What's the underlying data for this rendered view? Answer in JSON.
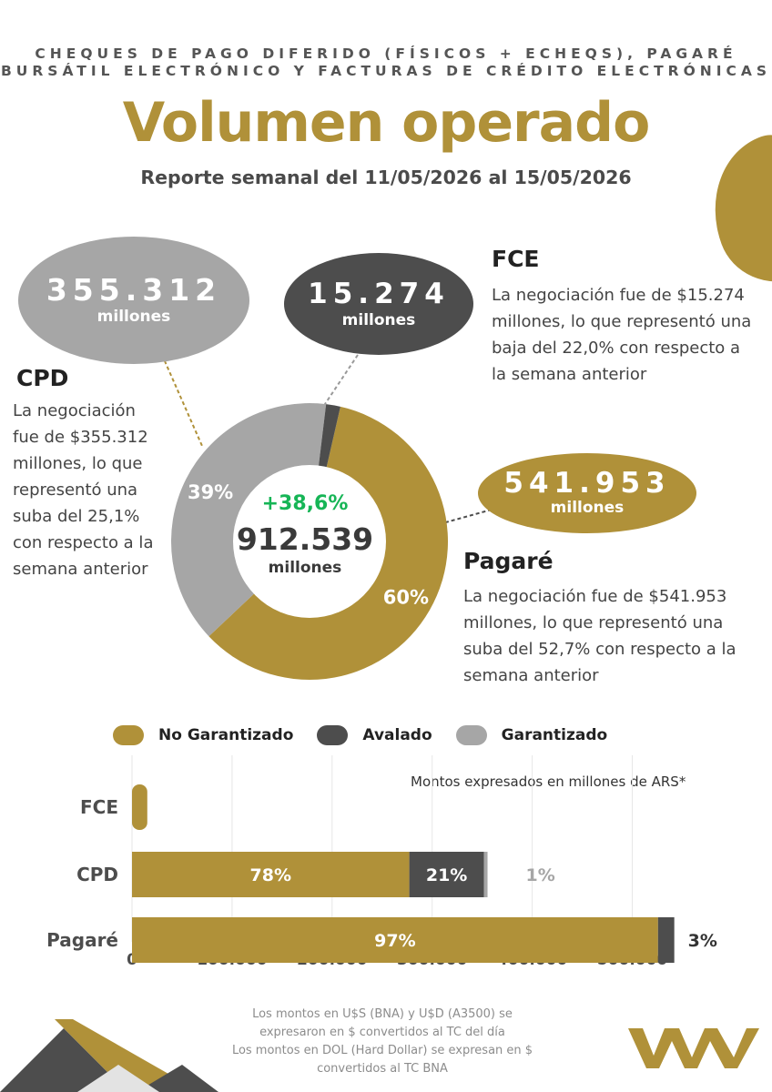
{
  "header": {
    "subtitle_line1": "CHEQUES DE PAGO DIFERIDO (FÍSICOS + ECHEQS), PAGARÉ",
    "subtitle_line2": "BURSÁTIL ELECTRÓNICO Y FACTURAS DE CRÉDITO ELECTRÓNICAS",
    "title": "Volumen operado",
    "report": "Reporte semanal del 11/05/2026 al 15/05/2026"
  },
  "bubbles": {
    "cpd": {
      "value": "355.312",
      "unit": "millones"
    },
    "fce": {
      "value": "15.274",
      "unit": "millones"
    },
    "pagare": {
      "value": "541.953",
      "unit": "millones"
    }
  },
  "sections": {
    "cpd": {
      "heading": "CPD",
      "lines": [
        "La negociación",
        "fue de $355.312",
        "millones, lo que",
        "representó una",
        "suba del 25,1%",
        "con respecto a la",
        "semana anterior"
      ]
    },
    "fce": {
      "heading": "FCE",
      "lines": [
        "La negociación fue de $15.274",
        "millones, lo que representó una",
        "baja del 22,0% con respecto a",
        "la semana anterior"
      ]
    },
    "pagare": {
      "heading": "Pagaré",
      "lines": [
        "La negociación fue de $541.953",
        "millones, lo que representó una",
        "suba del 52,7% con respecto a la",
        "semana anterior"
      ]
    }
  },
  "donut_center": {
    "change": "+38,6%",
    "total": "912.539",
    "unit": "millones"
  },
  "legend": [
    {
      "label": "No Garantizado",
      "color": "#b09139"
    },
    {
      "label": "Avalado",
      "color": "#4d4d4d"
    },
    {
      "label": "Garantizado",
      "color": "#a6a6a6"
    }
  ],
  "note": "Montos expresados en millones de ARS*",
  "footer": [
    "Los montos en U$S (BNA) y U$D (A3500) se",
    "expresaron en $ convertidos al TC del día",
    "Los montos en DOL (Hard Dollar) se expresan en $",
    "convertidos al TC BNA"
  ],
  "colors": {
    "gold": "#b09139",
    "dark": "#4d4d4d",
    "gray": "#a6a6a6",
    "positive": "#16b556"
  },
  "chart_data": [
    {
      "type": "pie",
      "categories": [
        "Pagaré",
        "CPD",
        "FCE"
      ],
      "values": [
        541953,
        355312,
        15274
      ],
      "labels": [
        "60%",
        "39%",
        ""
      ],
      "colors": [
        "#b09139",
        "#a6a6a6",
        "#4d4d4d"
      ]
    },
    {
      "type": "bar",
      "orientation": "horizontal",
      "stacked": true,
      "categories": [
        "FCE",
        "CPD",
        "Pagaré"
      ],
      "series": [
        {
          "name": "No Garantizado",
          "values": [
            15274,
            277143,
            525694
          ],
          "labels": [
            "",
            "78%",
            "97%"
          ]
        },
        {
          "name": "Avalado",
          "values": [
            0,
            74616,
            16259
          ],
          "labels": [
            "",
            "21%",
            "3%"
          ]
        },
        {
          "name": "Garantizado",
          "values": [
            0,
            3553,
            0
          ],
          "labels": [
            "",
            "1%",
            ""
          ]
        }
      ],
      "xticks": [
        "0",
        "100.000",
        "200.000",
        "300.000",
        "400.000",
        "500.000"
      ],
      "xlim": [
        0,
        555000
      ],
      "grid": true,
      "legend": "top"
    }
  ]
}
